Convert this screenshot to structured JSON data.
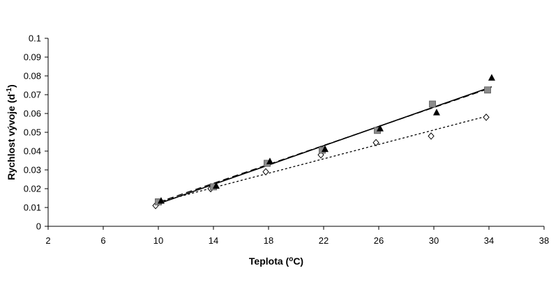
{
  "chart_data": {
    "type": "scatter",
    "xlabel": {
      "pre": "Teplota (",
      "sup": "o",
      "post": "C)"
    },
    "ylabel": {
      "pre": "Rychlost vývoje (d",
      "sup": "-1",
      "post": ")"
    },
    "xlim": [
      2,
      38
    ],
    "ylim": [
      0,
      0.1
    ],
    "x_ticks": [
      "2",
      "6",
      "10",
      "14",
      "18",
      "22",
      "26",
      "30",
      "34",
      "38"
    ],
    "y_ticks": [
      "0",
      "0.01",
      "0.02",
      "0.03",
      "0.04",
      "0.05",
      "0.06",
      "0.07",
      "0.08",
      "0.09",
      "0.1"
    ],
    "grid": false,
    "legend": "none",
    "series": [
      {
        "marker": "open-diamond",
        "color": "#000000",
        "points": [
          [
            9.8,
            0.011
          ],
          [
            13.8,
            0.02
          ],
          [
            17.8,
            0.029
          ],
          [
            21.8,
            0.038
          ],
          [
            25.8,
            0.0445
          ],
          [
            29.8,
            0.048
          ],
          [
            33.8,
            0.058
          ]
        ],
        "trendline": {
          "style": "dotted",
          "from": [
            9.8,
            0.0125
          ],
          "to": [
            33.8,
            0.0585
          ]
        }
      },
      {
        "marker": "gray-square",
        "color": "#8c8c8c",
        "points": [
          [
            10.0,
            0.013
          ],
          [
            14.0,
            0.021
          ],
          [
            17.9,
            0.0335
          ],
          [
            21.9,
            0.0405
          ],
          [
            25.9,
            0.051
          ],
          [
            29.9,
            0.065
          ],
          [
            33.9,
            0.0725
          ]
        ],
        "trendline": {
          "style": "dashed",
          "from": [
            10.0,
            0.0128
          ],
          "to": [
            33.9,
            0.073
          ]
        }
      },
      {
        "marker": "black-triangle",
        "color": "#000000",
        "points": [
          [
            10.2,
            0.0135
          ],
          [
            14.2,
            0.0215
          ],
          [
            18.1,
            0.0345
          ],
          [
            22.1,
            0.041
          ],
          [
            26.1,
            0.052
          ],
          [
            30.2,
            0.0605
          ],
          [
            34.2,
            0.079
          ]
        ],
        "trendline": {
          "style": "solid",
          "from": [
            9.8,
            0.0115
          ],
          "to": [
            34.2,
            0.0742
          ]
        }
      }
    ]
  }
}
